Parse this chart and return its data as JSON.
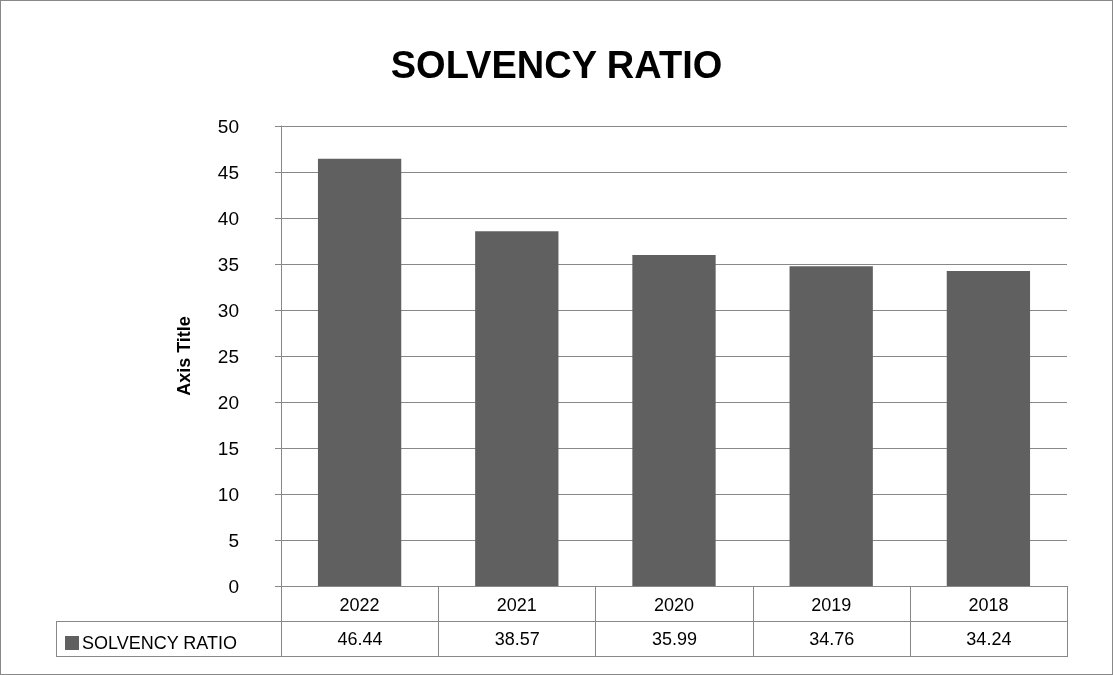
{
  "chart_data": {
    "type": "bar",
    "title": "SOLVENCY RATIO",
    "ylabel": "Axis Title",
    "categories": [
      "2022",
      "2021",
      "2020",
      "2019",
      "2018"
    ],
    "series": [
      {
        "name": "SOLVENCY RATIO",
        "color": "#606060",
        "values": [
          46.44,
          38.57,
          35.99,
          34.76,
          34.24
        ]
      }
    ],
    "ylim": [
      0,
      50
    ],
    "yticks": [
      0,
      5,
      10,
      15,
      20,
      25,
      30,
      35,
      40,
      45,
      50
    ],
    "grid": "y",
    "legend": "bottom left",
    "data_labels": true
  }
}
